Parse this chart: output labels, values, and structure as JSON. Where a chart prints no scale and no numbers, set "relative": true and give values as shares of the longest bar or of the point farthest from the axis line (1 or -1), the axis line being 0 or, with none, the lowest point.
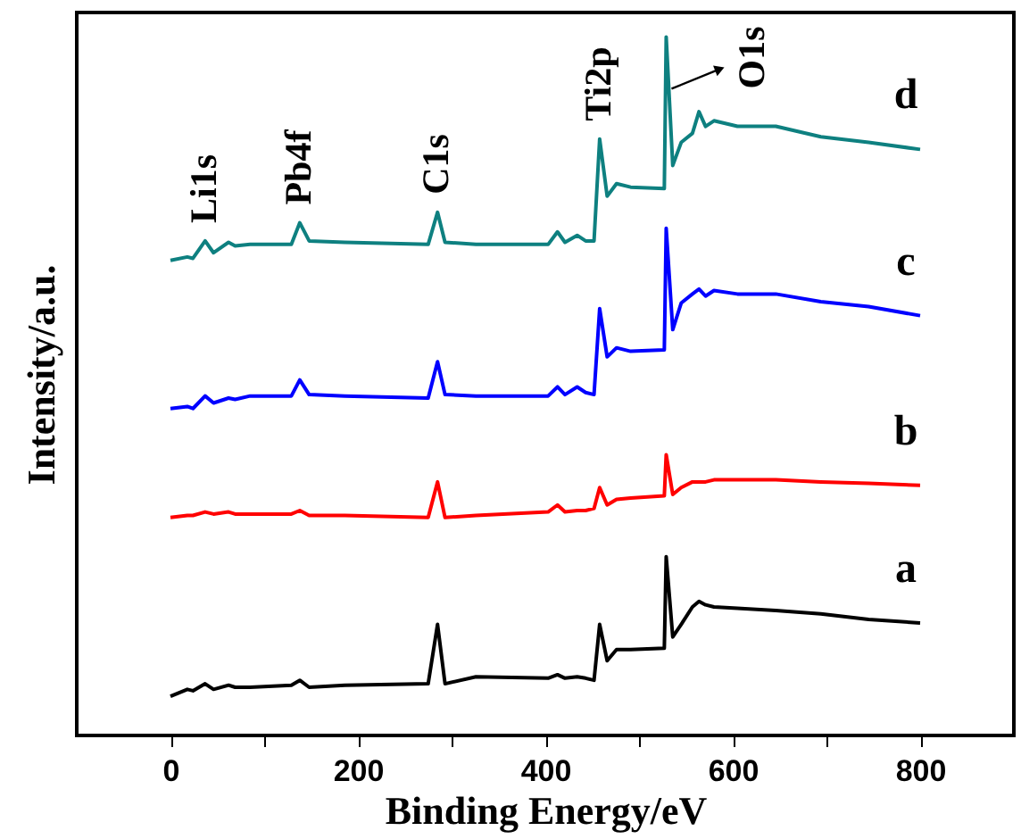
{
  "chart_data": {
    "type": "line",
    "relative": true,
    "xlabel": "Binding Energy/eV",
    "ylabel": "Intensity/a.u.",
    "xlim": [
      -100,
      900
    ],
    "xticks": [
      0,
      {
        "value": 100,
        "label": null
      },
      200,
      {
        "value": 300,
        "label": null
      },
      400,
      {
        "value": 500,
        "label": null
      },
      600,
      {
        "value": 700,
        "label": null
      },
      800
    ],
    "grid": false,
    "legend": false,
    "x": [
      0,
      18,
      24,
      37,
      46,
      62,
      69,
      85,
      129,
      138,
      148,
      186,
      275,
      285,
      293,
      326,
      403,
      413,
      421,
      434,
      443,
      452,
      458,
      466,
      476,
      491,
      527,
      529,
      536,
      545,
      557,
      564,
      571,
      580,
      605,
      646,
      694,
      745,
      800
    ],
    "series": [
      {
        "name": "a",
        "color": "#000000",
        "values": [
          0.056,
          0.066,
          0.064,
          0.074,
          0.066,
          0.072,
          0.069,
          0.069,
          0.072,
          0.079,
          0.069,
          0.072,
          0.074,
          0.159,
          0.074,
          0.084,
          0.082,
          0.087,
          0.082,
          0.084,
          0.082,
          0.079,
          0.159,
          0.107,
          0.123,
          0.123,
          0.125,
          0.256,
          0.141,
          0.159,
          0.184,
          0.192,
          0.187,
          0.184,
          0.182,
          0.179,
          0.174,
          0.166,
          0.161
        ]
      },
      {
        "name": "b",
        "color": "#ff0000",
        "values": [
          0.312,
          0.315,
          0.315,
          0.32,
          0.317,
          0.32,
          0.317,
          0.317,
          0.317,
          0.322,
          0.315,
          0.315,
          0.312,
          0.363,
          0.312,
          0.315,
          0.32,
          0.33,
          0.32,
          0.322,
          0.322,
          0.325,
          0.355,
          0.33,
          0.338,
          0.34,
          0.343,
          0.402,
          0.345,
          0.355,
          0.363,
          0.363,
          0.363,
          0.366,
          0.366,
          0.366,
          0.363,
          0.361,
          0.358
        ]
      },
      {
        "name": "c",
        "color": "#0000ff",
        "values": [
          0.468,
          0.471,
          0.468,
          0.486,
          0.476,
          0.483,
          0.481,
          0.486,
          0.486,
          0.509,
          0.488,
          0.486,
          0.483,
          0.535,
          0.488,
          0.486,
          0.486,
          0.499,
          0.488,
          0.499,
          0.491,
          0.488,
          0.611,
          0.542,
          0.555,
          0.55,
          0.552,
          0.726,
          0.581,
          0.619,
          0.632,
          0.639,
          0.629,
          0.637,
          0.632,
          0.632,
          0.621,
          0.614,
          0.601
        ]
      },
      {
        "name": "d",
        "color": "#0e8080",
        "values": [
          0.68,
          0.685,
          0.683,
          0.708,
          0.691,
          0.706,
          0.701,
          0.703,
          0.703,
          0.734,
          0.708,
          0.706,
          0.703,
          0.749,
          0.706,
          0.703,
          0.703,
          0.721,
          0.706,
          0.716,
          0.708,
          0.708,
          0.854,
          0.772,
          0.79,
          0.785,
          0.783,
          1.0,
          0.816,
          0.849,
          0.862,
          0.893,
          0.872,
          0.88,
          0.872,
          0.872,
          0.857,
          0.849,
          0.839
        ]
      }
    ],
    "annotations": [
      {
        "text": "Li1s",
        "x": 37,
        "y": 0.708
      },
      {
        "text": "Pb4f",
        "x": 138,
        "y": 0.734
      },
      {
        "text": "C1s",
        "x": 285,
        "y": 0.749
      },
      {
        "text": "Ti2p",
        "x": 458,
        "y": 0.854
      },
      {
        "text": "O1s",
        "x": 529,
        "y": 1.0
      }
    ]
  }
}
